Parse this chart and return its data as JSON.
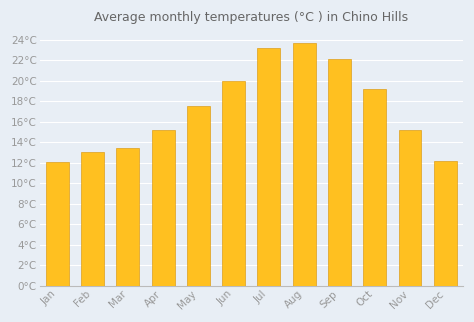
{
  "title": "Average monthly temperatures (°C ) in Chino Hills",
  "months": [
    "Jan",
    "Feb",
    "Mar",
    "Apr",
    "May",
    "Jun",
    "Jul",
    "Aug",
    "Sep",
    "Oct",
    "Nov",
    "Dec"
  ],
  "values": [
    12.1,
    13.1,
    13.4,
    15.2,
    17.5,
    20.0,
    23.2,
    23.7,
    22.1,
    19.2,
    15.2,
    12.2
  ],
  "bar_color_top": "#FFC020",
  "bar_color_bottom": "#F0A000",
  "bar_edge_color": "#D89000",
  "background_color": "#e8eef5",
  "plot_bg_color": "#e8eef5",
  "grid_color": "#ffffff",
  "title_fontsize": 9,
  "tick_fontsize": 7.5,
  "tick_color": "#999999",
  "title_color": "#666666",
  "ylim": [
    0,
    25
  ],
  "yticks": [
    0,
    2,
    4,
    6,
    8,
    10,
    12,
    14,
    16,
    18,
    20,
    22,
    24
  ]
}
